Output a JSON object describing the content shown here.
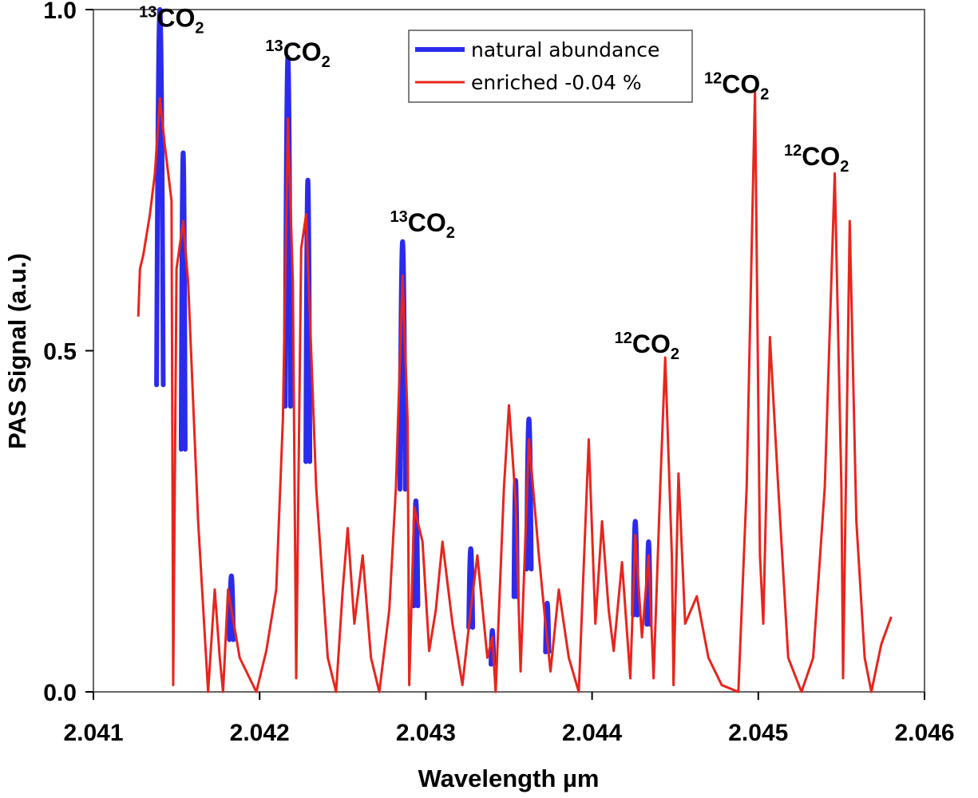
{
  "chart_data": {
    "type": "line",
    "xlabel": "Wavelength µm",
    "ylabel": "PAS Signal (a.u.)",
    "xlim": [
      2.041,
      2.046
    ],
    "ylim": [
      0.0,
      1.0
    ],
    "x_ticks": [
      "2.041",
      "2.042",
      "2.043",
      "2.044",
      "2.045",
      "2.046"
    ],
    "x_tick_values": [
      2.041,
      2.042,
      2.043,
      2.044,
      2.045,
      2.046
    ],
    "y_ticks": [
      "0.0",
      "0.5",
      "1.0"
    ],
    "y_tick_values": [
      0.0,
      0.5,
      1.0
    ],
    "legend_position": "top-center",
    "series": [
      {
        "name": "natural abundance",
        "color": "#2b2bee",
        "peaks": [
          [
            2.0414,
            1.0,
            2e-05
          ],
          [
            2.04154,
            0.79,
            1.2e-05
          ],
          [
            2.04217,
            0.93,
            1.6e-05
          ],
          [
            2.04229,
            0.75,
            1.2e-05
          ],
          [
            2.04286,
            0.66,
            1.6e-05
          ],
          [
            2.04294,
            0.28,
            1.2e-05
          ],
          [
            2.04362,
            0.4,
            1.4e-05
          ],
          [
            2.04354,
            0.31,
            1e-05
          ],
          [
            2.04327,
            0.21,
            1.2e-05
          ],
          [
            2.04426,
            0.25,
            1.2e-05
          ],
          [
            2.04434,
            0.22,
            1e-05
          ],
          [
            2.04183,
            0.17,
            1.2e-05
          ],
          [
            2.04373,
            0.13,
            1e-05
          ],
          [
            2.0434,
            0.09,
            8e-06
          ]
        ]
      },
      {
        "name": "enriched -0.04 %",
        "color": "#e8251c",
        "baseline": [
          [
            2.04127,
            0.55
          ],
          [
            2.04128,
            0.62
          ],
          [
            2.0413,
            0.64
          ],
          [
            2.04134,
            0.7
          ],
          [
            2.04137,
            0.76
          ],
          [
            2.0414,
            0.87
          ],
          [
            2.04143,
            0.8
          ],
          [
            2.04147,
            0.72
          ],
          [
            2.04148,
            0.01
          ],
          [
            2.0415,
            0.62
          ],
          [
            2.04154,
            0.69
          ],
          [
            2.04157,
            0.6
          ],
          [
            2.04163,
            0.25
          ],
          [
            2.04169,
            0.0
          ],
          [
            2.04173,
            0.15
          ],
          [
            2.04176,
            0.05
          ],
          [
            2.04178,
            0.0
          ],
          [
            2.04181,
            0.15
          ],
          [
            2.04188,
            0.05
          ],
          [
            2.04198,
            0.0
          ],
          [
            2.04204,
            0.06
          ],
          [
            2.0421,
            0.15
          ],
          [
            2.04214,
            0.4
          ],
          [
            2.04217,
            0.84
          ],
          [
            2.0422,
            0.6
          ],
          [
            2.04222,
            0.02
          ],
          [
            2.04225,
            0.65
          ],
          [
            2.04228,
            0.7
          ],
          [
            2.04234,
            0.3
          ],
          [
            2.04241,
            0.05
          ],
          [
            2.04246,
            0.0
          ],
          [
            2.0425,
            0.15
          ],
          [
            2.04253,
            0.24
          ],
          [
            2.04257,
            0.1
          ],
          [
            2.04262,
            0.2
          ],
          [
            2.04267,
            0.05
          ],
          [
            2.04272,
            0.0
          ],
          [
            2.04278,
            0.12
          ],
          [
            2.04282,
            0.3
          ],
          [
            2.04286,
            0.61
          ],
          [
            2.04289,
            0.4
          ],
          [
            2.0429,
            0.01
          ],
          [
            2.04293,
            0.27
          ],
          [
            2.04298,
            0.22
          ],
          [
            2.04302,
            0.06
          ],
          [
            2.04306,
            0.12
          ],
          [
            2.0431,
            0.22
          ],
          [
            2.04316,
            0.1
          ],
          [
            2.04322,
            0.01
          ],
          [
            2.04327,
            0.12
          ],
          [
            2.04331,
            0.2
          ],
          [
            2.04337,
            0.05
          ],
          [
            2.0434,
            0.08
          ],
          [
            2.04342,
            0.0
          ],
          [
            2.04347,
            0.3
          ],
          [
            2.0435,
            0.42
          ],
          [
            2.04354,
            0.28
          ],
          [
            2.04357,
            0.03
          ],
          [
            2.04362,
            0.37
          ],
          [
            2.04368,
            0.2
          ],
          [
            2.04372,
            0.1
          ],
          [
            2.04375,
            0.03
          ],
          [
            2.0438,
            0.15
          ],
          [
            2.04386,
            0.05
          ],
          [
            2.04392,
            0.0
          ],
          [
            2.04398,
            0.37
          ],
          [
            2.04402,
            0.1
          ],
          [
            2.04406,
            0.25
          ],
          [
            2.0441,
            0.12
          ],
          [
            2.04413,
            0.06
          ],
          [
            2.04418,
            0.19
          ],
          [
            2.04423,
            0.02
          ],
          [
            2.04426,
            0.23
          ],
          [
            2.0443,
            0.08
          ],
          [
            2.04434,
            0.2
          ],
          [
            2.04437,
            0.02
          ],
          [
            2.04441,
            0.3
          ],
          [
            2.04444,
            0.49
          ],
          [
            2.04448,
            0.2
          ],
          [
            2.04449,
            0.01
          ],
          [
            2.04452,
            0.32
          ],
          [
            2.04456,
            0.1
          ],
          [
            2.04463,
            0.14
          ],
          [
            2.0447,
            0.05
          ],
          [
            2.04478,
            0.01
          ],
          [
            2.04488,
            0.0
          ],
          [
            2.04493,
            0.3
          ],
          [
            2.04498,
            0.88
          ],
          [
            2.04501,
            0.2
          ],
          [
            2.04503,
            0.1
          ],
          [
            2.04507,
            0.52
          ],
          [
            2.04512,
            0.3
          ],
          [
            2.04518,
            0.05
          ],
          [
            2.04526,
            0.0
          ],
          [
            2.04533,
            0.05
          ],
          [
            2.0454,
            0.3
          ],
          [
            2.04546,
            0.76
          ],
          [
            2.0455,
            0.3
          ],
          [
            2.04551,
            0.02
          ],
          [
            2.04555,
            0.69
          ],
          [
            2.04559,
            0.25
          ],
          [
            2.04564,
            0.05
          ],
          [
            2.04568,
            0.0
          ],
          [
            2.04574,
            0.07
          ],
          [
            2.0458,
            0.11
          ]
        ]
      }
    ],
    "annotations": [
      {
        "isotope": "13",
        "molecule": "CO",
        "subscript": "2",
        "x": 2.04147,
        "y": 0.975
      },
      {
        "isotope": "13",
        "molecule": "CO",
        "subscript": "2",
        "x": 2.04223,
        "y": 0.925
      },
      {
        "isotope": "13",
        "molecule": "CO",
        "subscript": "2",
        "x": 2.04298,
        "y": 0.675
      },
      {
        "isotope": "12",
        "molecule": "CO",
        "subscript": "2",
        "x": 2.04433,
        "y": 0.497
      },
      {
        "isotope": "12",
        "molecule": "CO",
        "subscript": "2",
        "x": 2.04487,
        "y": 0.878
      },
      {
        "isotope": "12",
        "molecule": "CO",
        "subscript": "2",
        "x": 2.04535,
        "y": 0.772
      }
    ]
  }
}
